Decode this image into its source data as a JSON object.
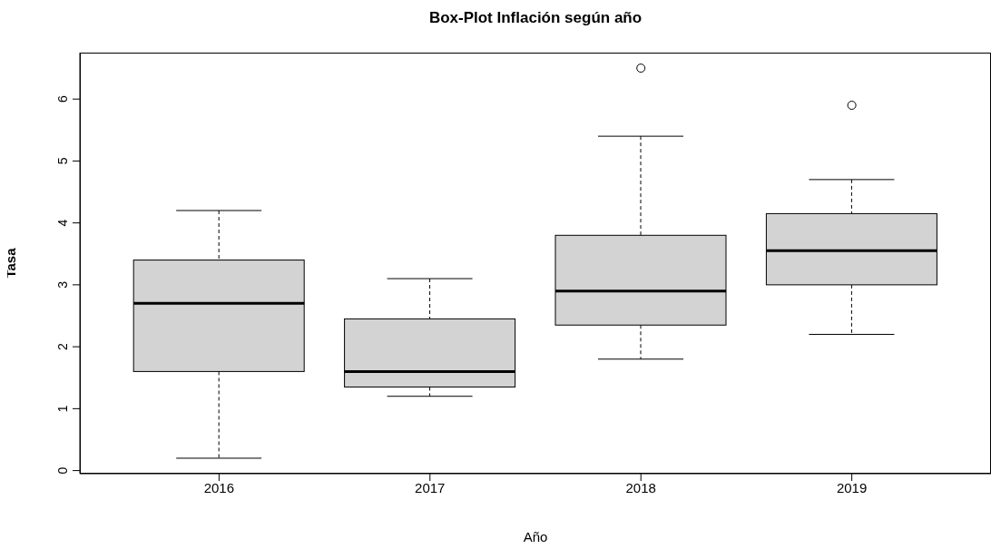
{
  "chart_data": {
    "type": "box",
    "title": "Box-Plot Inflación según año",
    "xlabel": "Año",
    "ylabel": "Tasa",
    "categories": [
      "2016",
      "2017",
      "2018",
      "2019"
    ],
    "boxes": [
      {
        "low": 0.2,
        "q1": 1.6,
        "median": 2.7,
        "q3": 3.4,
        "high": 4.2
      },
      {
        "low": 1.2,
        "q1": 1.35,
        "median": 1.6,
        "q3": 2.45,
        "high": 3.1
      },
      {
        "low": 1.8,
        "q1": 2.35,
        "median": 2.9,
        "q3": 3.8,
        "high": 5.4,
        "outliers": [
          6.5
        ]
      },
      {
        "low": 2.2,
        "q1": 3.0,
        "median": 3.55,
        "q3": 4.15,
        "high": 4.7,
        "outliers": [
          5.9
        ]
      }
    ],
    "color": "#d3d3d3",
    "ylim": [
      -0.05,
      6.75
    ],
    "yticks": [
      0,
      1,
      2,
      3,
      4,
      5,
      6
    ]
  }
}
